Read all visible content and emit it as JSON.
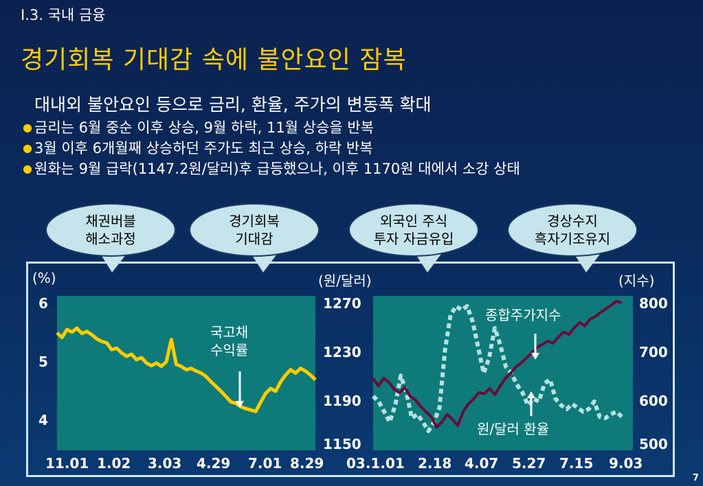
{
  "section": "I.3. 국내 금융",
  "title": "경기회복 기대감 속에 불안요인 잠복",
  "subtitle": "대내외 불안요인 등으로 금리, 환율, 주가의 변동폭 확대",
  "bullets": [
    "금리는 6월 중순 이후 상승, 9월 하락, 11월 상승을 반복",
    "3월 이후 6개월째 상승하던 주가도 최근 상승, 하락 반복",
    "원화는 9월 급락(1147.2원/달러)후 급등했으나, 이후 1170원 대에서 소강 상태"
  ],
  "callouts": [
    {
      "line1": "채권버블",
      "line2": "해소과정"
    },
    {
      "line1": "경기회복",
      "line2": "기대감"
    },
    {
      "line1": "외국인 주식",
      "line2": "투자 자금유입"
    },
    {
      "line1": "경상수지",
      "line2": "흑자기조유지"
    }
  ],
  "page_number": "7",
  "colors": {
    "panel": "#0f7a7a",
    "yield_line": "#ffcc00",
    "kospi_line": "#6a0a3a",
    "fx_line": "#b8e0e0",
    "title": "#ffcc00",
    "callout_fill": "#c6e4ec"
  },
  "chart_data": [
    {
      "type": "line",
      "ylabel": "(%)",
      "ylim": [
        3.7,
        6
      ],
      "yticks": [
        "6",
        "5",
        "4"
      ],
      "xticks": [
        "11.01",
        "1.02",
        "3.03",
        "4.29",
        "7.01",
        "8.29"
      ],
      "annotation": "국고채\n수익률",
      "series": [
        {
          "values": [
            5.45,
            5.38,
            5.5,
            5.46,
            5.52,
            5.44,
            5.47,
            5.42,
            5.36,
            5.32,
            5.3,
            5.2,
            5.22,
            5.15,
            5.1,
            5.13,
            5.05,
            5.08,
            5.0,
            4.96,
            5.0,
            4.95,
            5.02,
            5.35,
            4.98,
            4.95,
            4.9,
            4.92,
            4.88,
            4.85,
            4.8,
            4.72,
            4.65,
            4.58,
            4.5,
            4.42,
            4.4,
            4.35,
            4.32,
            4.3,
            4.28,
            4.42,
            4.55,
            4.62,
            4.58,
            4.72,
            4.82,
            4.9,
            4.85,
            4.92,
            4.88,
            4.82,
            4.75
          ]
        }
      ]
    },
    {
      "type": "line",
      "ylabel_left": "(원/달러)",
      "ylabel_right": "(지수)",
      "ylim_left": [
        1150,
        1270
      ],
      "ylim_right": [
        500,
        800
      ],
      "yticks_left": [
        "1270",
        "1230",
        "1190",
        "1150"
      ],
      "yticks_right": [
        "800",
        "700",
        "600",
        "500"
      ],
      "xticks": [
        "03.1.01",
        "2.18",
        "4.07",
        "5.27",
        "7.15",
        "9.03"
      ],
      "series": [
        {
          "name": "종합주가지수",
          "axis": "right",
          "values": [
            640,
            625,
            640,
            632,
            618,
            612,
            622,
            605,
            598,
            585,
            575,
            565,
            545,
            555,
            570,
            560,
            548,
            575,
            590,
            600,
            612,
            610,
            620,
            608,
            625,
            640,
            650,
            662,
            670,
            680,
            690,
            700,
            706,
            712,
            708,
            720,
            730,
            725,
            738,
            748,
            742,
            755,
            760,
            768,
            775,
            782,
            790,
            786
          ]
        },
        {
          "name": "원/달러 환율",
          "axis": "left",
          "values": [
            1192,
            1188,
            1180,
            1172,
            1185,
            1208,
            1195,
            1175,
            1178,
            1172,
            1165,
            1172,
            1183,
            1228,
            1255,
            1262,
            1259,
            1262,
            1250,
            1230,
            1210,
            1222,
            1245,
            1232,
            1215,
            1210,
            1201,
            1195,
            1185,
            1190,
            1188,
            1202,
            1205,
            1190,
            1185,
            1182,
            1186,
            1183,
            1180,
            1182,
            1188,
            1176,
            1175,
            1178,
            1180,
            1176
          ]
        }
      ]
    }
  ]
}
